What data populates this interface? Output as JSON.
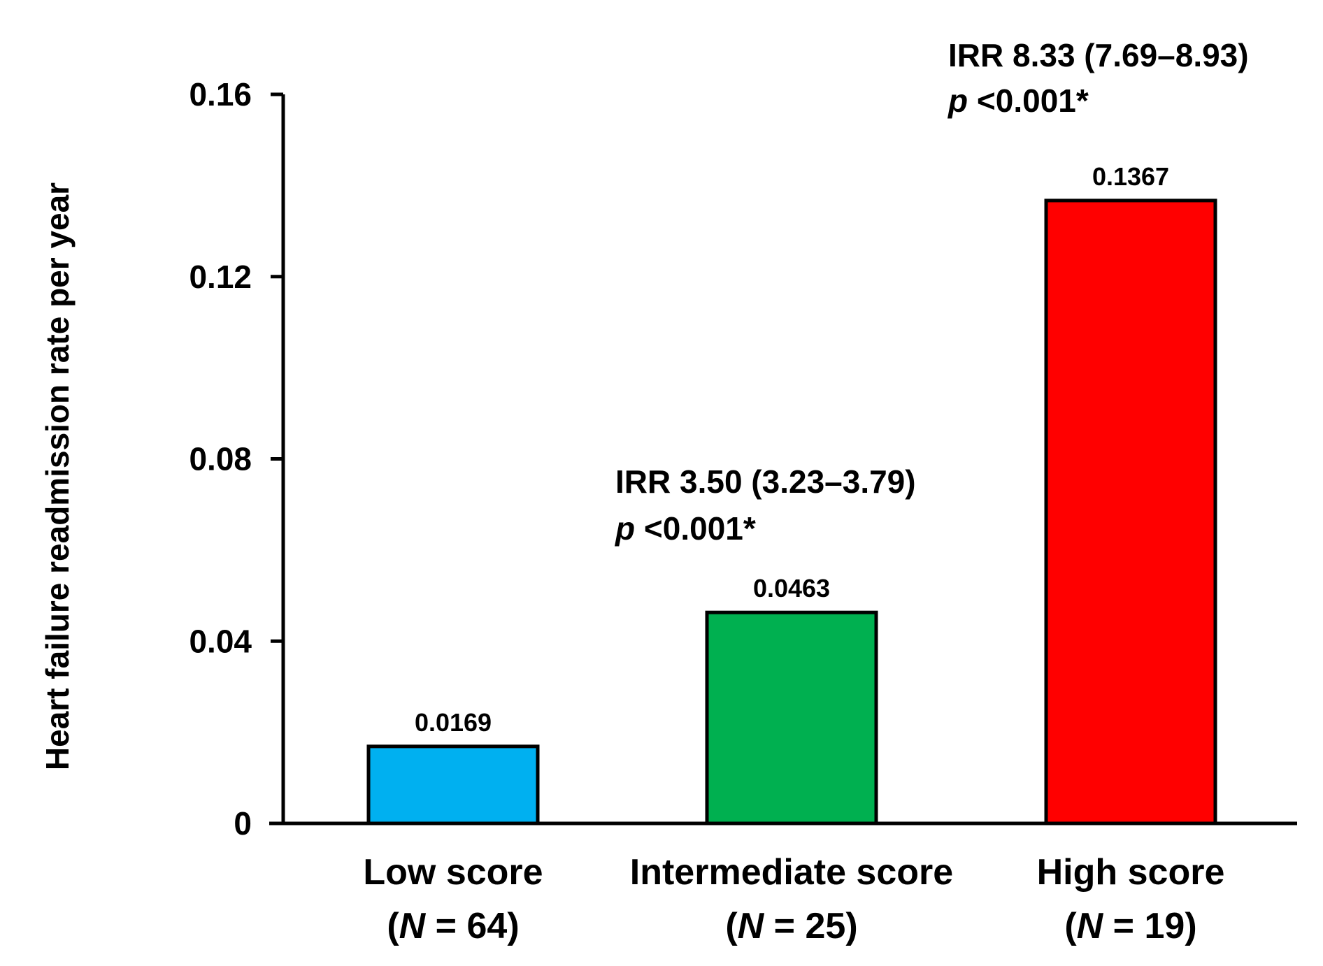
{
  "chart_data": {
    "type": "bar",
    "title": "",
    "ylabel": "Heart failure readmission rate per year",
    "xlabel": "",
    "ylim": [
      0,
      0.16
    ],
    "yticks": [
      0,
      0.04,
      0.08,
      0.12,
      0.16
    ],
    "ytick_labels": [
      "0",
      "0.04",
      "0.08",
      "0.12",
      "0.16"
    ],
    "grid": false,
    "categories": [
      {
        "name": "Low score",
        "n_prefix": "(",
        "n_var": "N",
        "n_suffix": " = 64)"
      },
      {
        "name": "Intermediate score",
        "n_prefix": "(",
        "n_var": "N",
        "n_suffix": " = 25)"
      },
      {
        "name": "High score",
        "n_prefix": "(",
        "n_var": "N",
        "n_suffix": " = 19)"
      }
    ],
    "values": [
      0.0169,
      0.0463,
      0.1367
    ],
    "value_labels": [
      "0.0169",
      "0.0463",
      "0.1367"
    ],
    "colors": [
      "#00b0f0",
      "#00b050",
      "#ff0000"
    ],
    "annotations": [
      {
        "category_index": 1,
        "line1": "IRR  3.50 (3.23–3.79)",
        "p_letter": "p",
        "p_rest": " <0.001*"
      },
      {
        "category_index": 2,
        "line1": "IRR  8.33 (7.69–8.93)",
        "p_letter": "p",
        "p_rest": " <0.001*"
      }
    ]
  }
}
